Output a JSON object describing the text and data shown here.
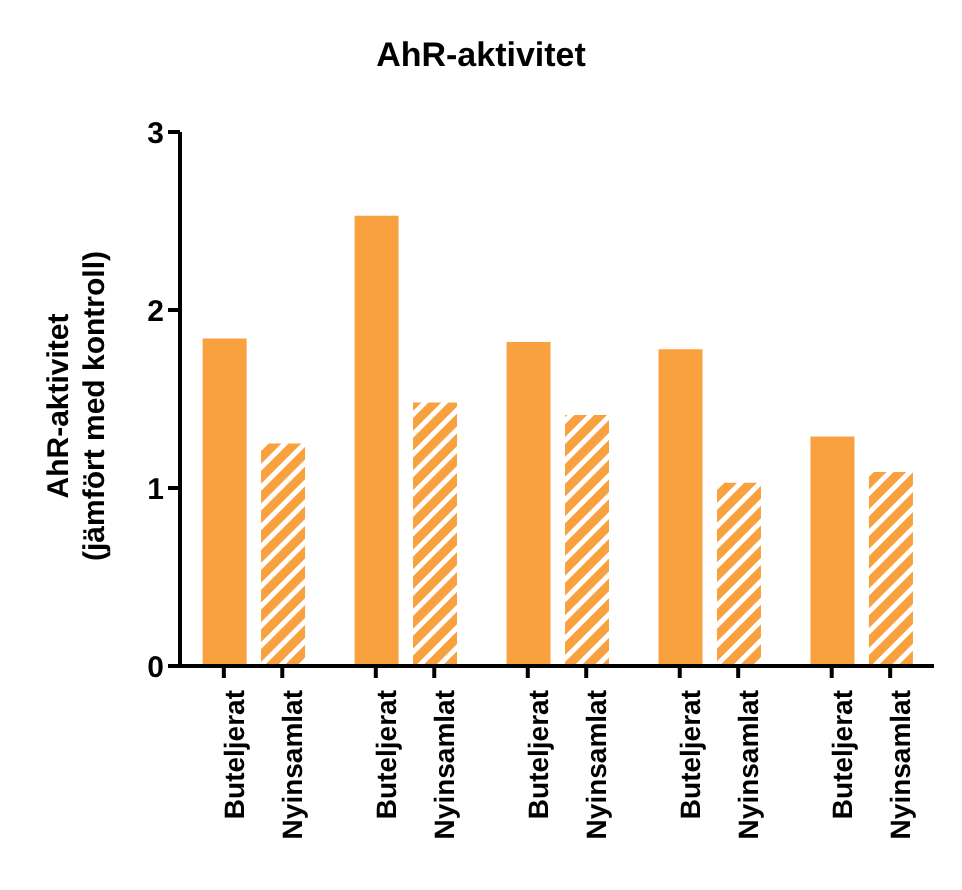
{
  "chart_data": {
    "type": "bar",
    "title": "AhR-aktivitet",
    "ylabel": "AhR-aktivitet\n(jämfört med kontroll)",
    "categories": [
      "Buteljerat",
      "Nyinsamlat",
      "Buteljerat",
      "Nyinsamlat",
      "Buteljerat",
      "Nyinsamlat",
      "Buteljerat",
      "Nyinsamlat",
      "Buteljerat",
      "Nyinsamlat"
    ],
    "series": [
      {
        "color": "#f9a03f",
        "values": [
          1.84,
          null,
          2.53,
          null,
          1.82,
          null,
          1.78,
          null,
          1.29,
          null
        ]
      },
      {
        "color": "#f9a03f",
        "values": [
          null,
          1.25,
          null,
          1.48,
          null,
          1.41,
          null,
          1.03,
          null,
          1.09
        ]
      }
    ],
    "ylim": [
      0,
      3
    ],
    "yticks": [
      0,
      1,
      2,
      3
    ],
    "grid": false,
    "legend": false
  }
}
